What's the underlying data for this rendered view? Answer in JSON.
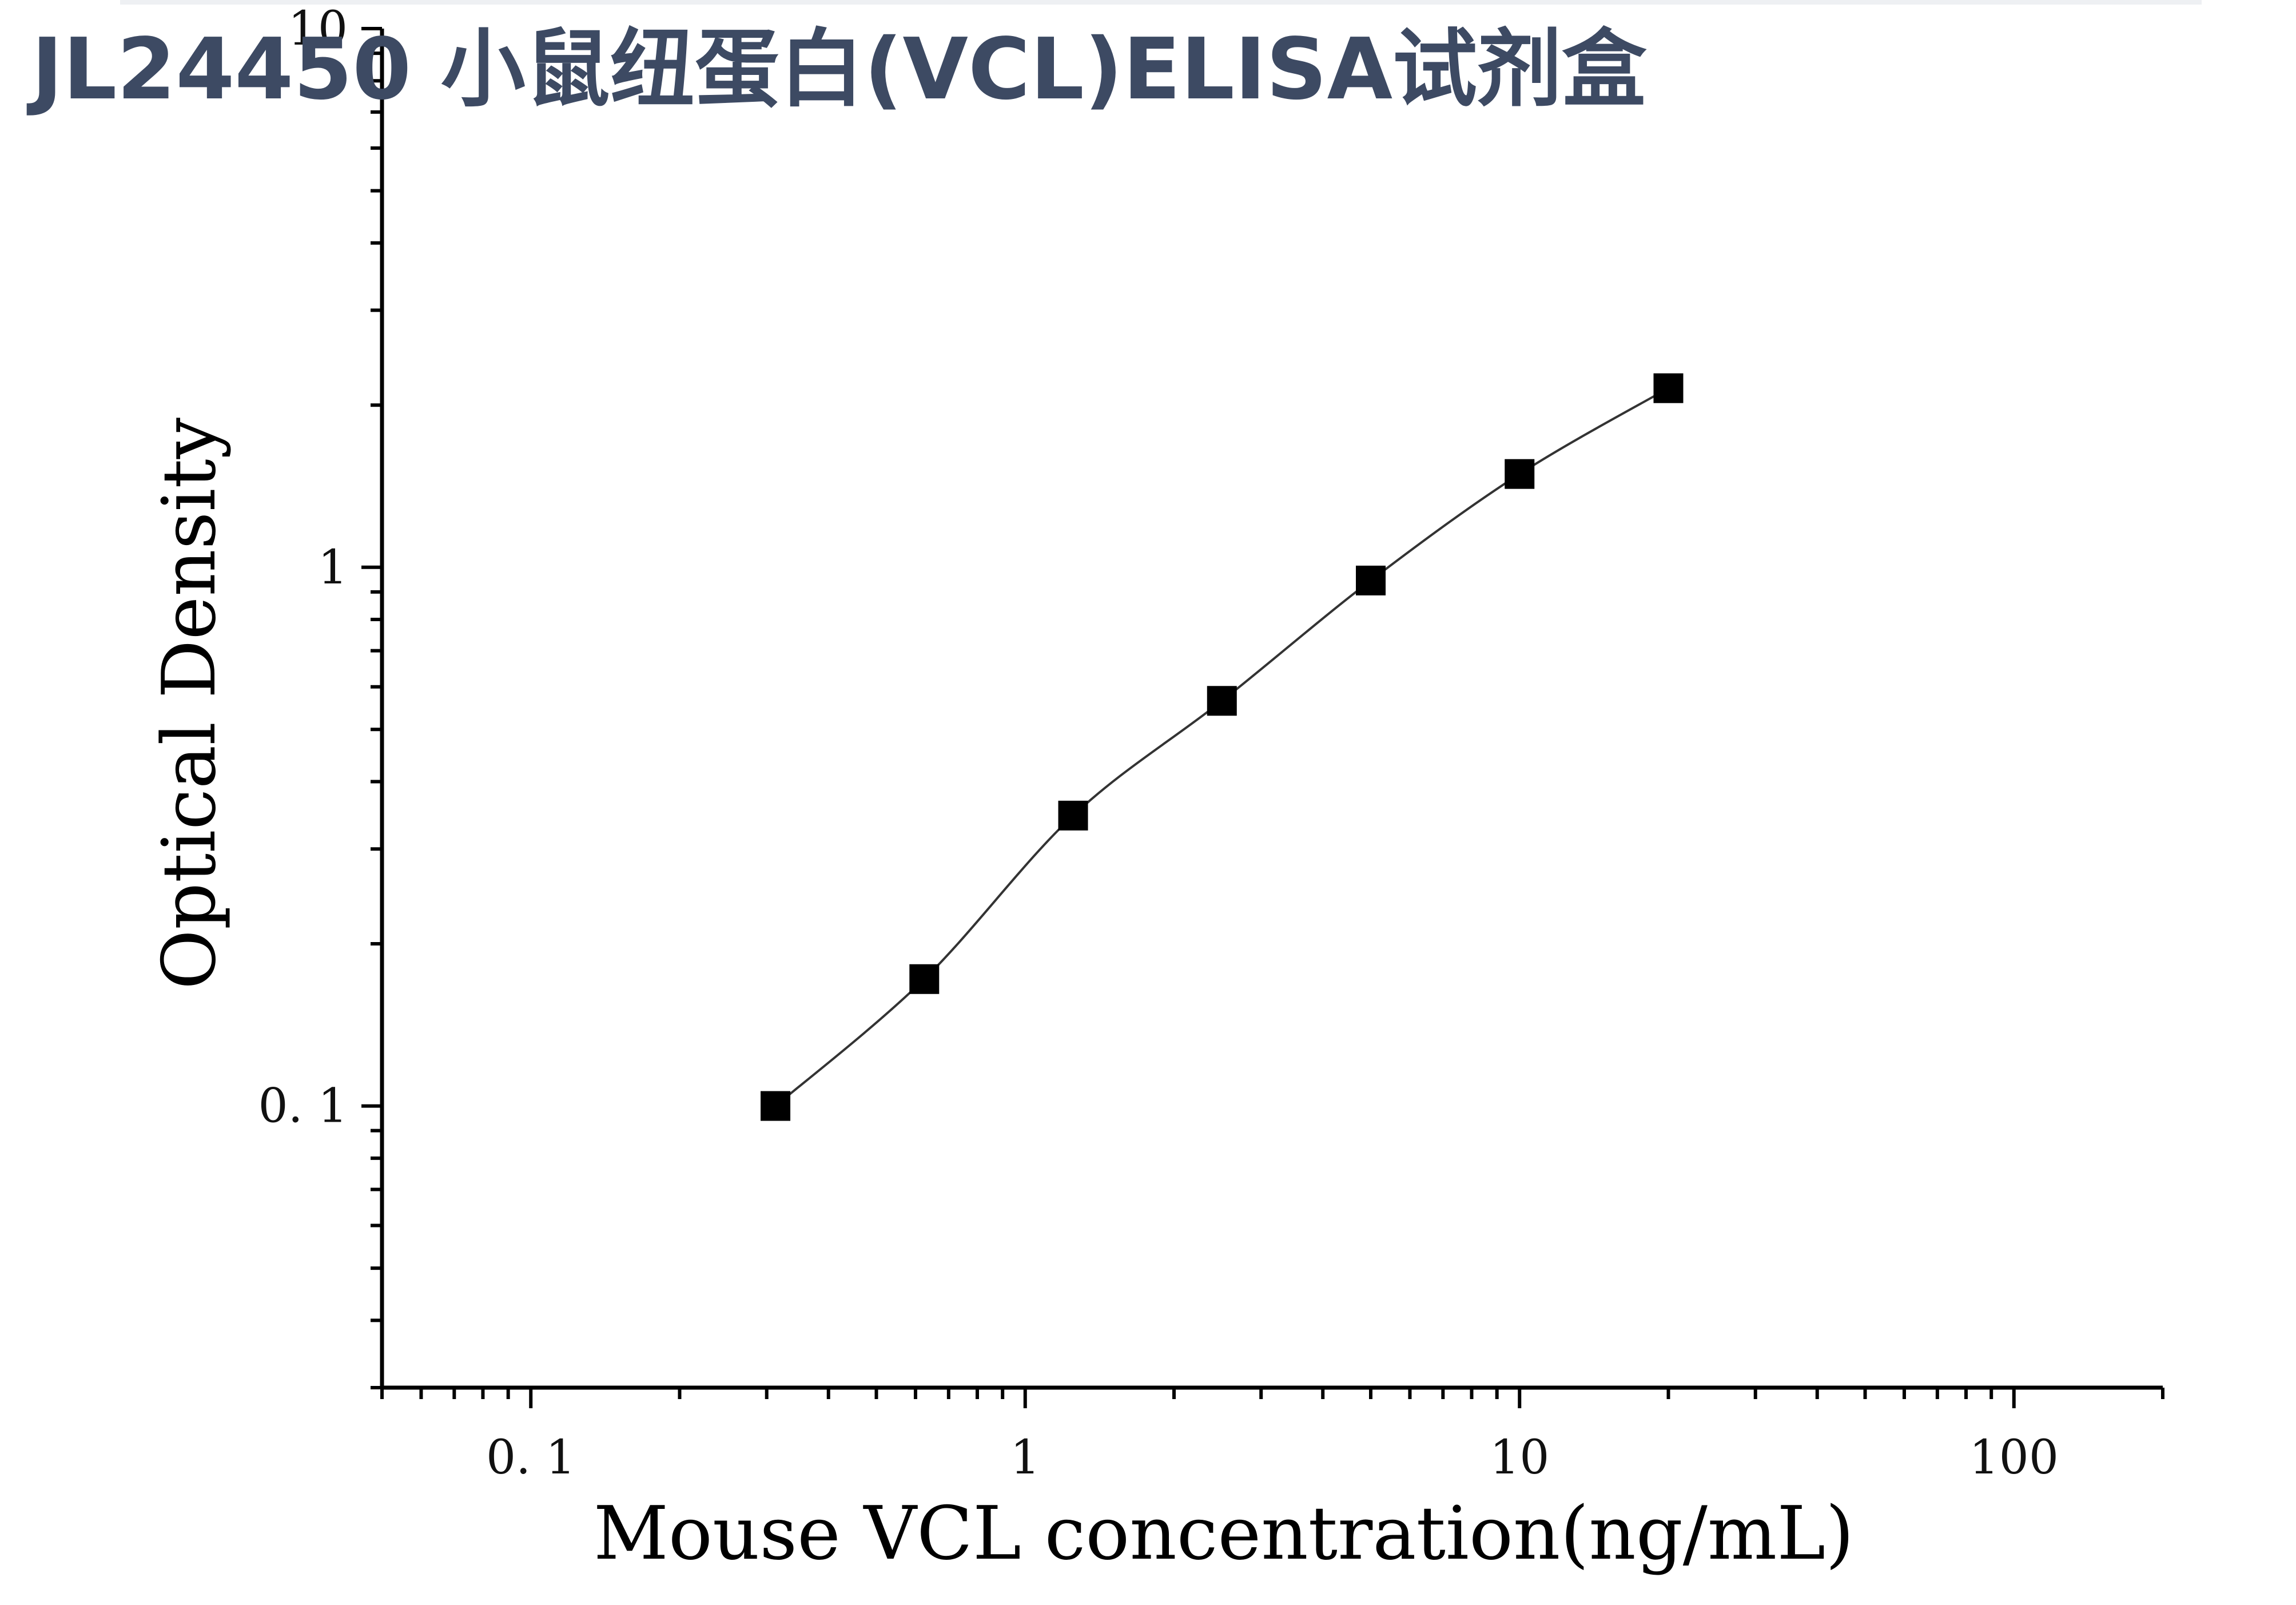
{
  "header": {
    "title": "JL24450 小鼠纽蛋白(VCL)ELISA试剂盒"
  },
  "colors": {
    "title": "#3d4a63",
    "axes": "#000000",
    "curve": "#333333",
    "markers": "#000000"
  },
  "chart_data": {
    "type": "scatter",
    "title": "",
    "xlabel": "Mouse VCL concentration(ng/mL)",
    "ylabel": "Optical Density",
    "x_scale": "log",
    "y_scale": "log",
    "xlim": [
      0.05,
      200
    ],
    "ylim": [
      0.03,
      10
    ],
    "x_ticks": [
      {
        "value": 0.1,
        "label": "0. 1"
      },
      {
        "value": 1,
        "label": "1"
      },
      {
        "value": 10,
        "label": "10"
      },
      {
        "value": 100,
        "label": "100"
      }
    ],
    "y_ticks": [
      {
        "value": 0.1,
        "label": "0. 1"
      },
      {
        "value": 1,
        "label": "1"
      },
      {
        "value": 10,
        "label": "10"
      }
    ],
    "grid": false,
    "legend": "none",
    "fit_curve": true,
    "series": [
      {
        "marker": "square",
        "x": [
          0.3125,
          0.625,
          1.25,
          2.5,
          5,
          10,
          20
        ],
        "y": [
          0.1,
          0.172,
          0.346,
          0.565,
          0.945,
          1.49,
          2.15
        ]
      }
    ]
  }
}
